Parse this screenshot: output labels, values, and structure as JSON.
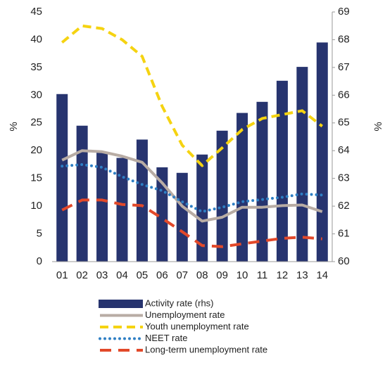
{
  "chart_data": {
    "type": "bar-line",
    "categories": [
      "01",
      "02",
      "03",
      "04",
      "05",
      "06",
      "07",
      "08",
      "09",
      "10",
      "11",
      "12",
      "13",
      "14"
    ],
    "ylabel": "%",
    "y2label": "%",
    "ylim": [
      0,
      45
    ],
    "yticks": [
      0,
      5,
      10,
      15,
      20,
      25,
      30,
      35,
      40,
      45
    ],
    "y2lim": [
      60,
      69
    ],
    "y2ticks": [
      60,
      61,
      62,
      63,
      64,
      65,
      66,
      67,
      68,
      69
    ],
    "series": [
      {
        "name": "Activity rate (rhs)",
        "kind": "bar",
        "axis": "y2",
        "color": "#27346f",
        "values": [
          66.04,
          64.9,
          63.96,
          63.74,
          64.4,
          63.4,
          63.2,
          63.86,
          64.72,
          65.36,
          65.76,
          66.52,
          67.02,
          67.9
        ]
      },
      {
        "name": "Unemployment rate",
        "kind": "line",
        "style": "solid",
        "color": "#b8aca4",
        "values": [
          18.3,
          20,
          19.8,
          19,
          17.9,
          14.2,
          10,
          7.3,
          8,
          9.8,
          9.8,
          10.1,
          10.2,
          9
        ]
      },
      {
        "name": "Youth unemployment rate",
        "kind": "line",
        "style": "dashed",
        "color": "#f5d311",
        "values": [
          39.5,
          42.5,
          42,
          40,
          37,
          28,
          21,
          17.3,
          20.5,
          23.8,
          25.8,
          26.5,
          27.2,
          24.4
        ]
      },
      {
        "name": "NEET rate",
        "kind": "line",
        "style": "dotted",
        "color": "#2f7fc4",
        "values": [
          17.2,
          17.5,
          17,
          15.3,
          13.9,
          12.8,
          10.8,
          9,
          9.8,
          10.8,
          11.2,
          11.6,
          12.2,
          12
        ]
      },
      {
        "name": "Long-term unemployment rate",
        "kind": "line",
        "style": "long-dash",
        "color": "#e2492a",
        "values": [
          9.3,
          11.1,
          11.1,
          10.3,
          10.1,
          7.8,
          5.4,
          2.9,
          2.7,
          3.2,
          3.7,
          4.2,
          4.4,
          4.1
        ]
      }
    ]
  }
}
